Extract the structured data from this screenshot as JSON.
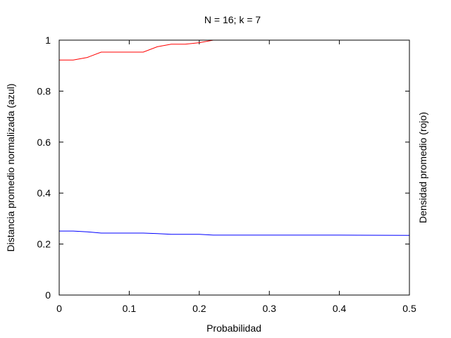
{
  "chart_data": {
    "type": "line",
    "title": "N = 16; k = 7",
    "xlabel": "Probabilidad",
    "ylabel": "Distancia promedio normalizada (azul)",
    "y2label": "Densidad promedio (rojo)",
    "xlim": [
      0,
      0.5
    ],
    "ylim": [
      0,
      1
    ],
    "xticks": [
      "0",
      "0.1",
      "0.2",
      "0.3",
      "0.4",
      "0.5"
    ],
    "yticks": [
      "0",
      "0.2",
      "0.4",
      "0.6",
      "0.8",
      "1"
    ],
    "grid": false,
    "series": [
      {
        "color": "#ff0000",
        "x": [
          0,
          0.02,
          0.04,
          0.06,
          0.08,
          0.1,
          0.12,
          0.14,
          0.16,
          0.18,
          0.2,
          0.22,
          0.24
        ],
        "y": [
          0.922,
          0.922,
          0.932,
          0.953,
          0.953,
          0.953,
          0.953,
          0.974,
          0.984,
          0.984,
          0.99,
          1.0,
          1.0
        ]
      },
      {
        "color": "#0000ff",
        "x": [
          0,
          0.02,
          0.04,
          0.06,
          0.08,
          0.1,
          0.12,
          0.14,
          0.16,
          0.18,
          0.2,
          0.22,
          0.24,
          0.3,
          0.4,
          0.5
        ],
        "y": [
          0.251,
          0.251,
          0.248,
          0.243,
          0.243,
          0.243,
          0.243,
          0.241,
          0.238,
          0.238,
          0.238,
          0.235,
          0.235,
          0.235,
          0.235,
          0.234
        ]
      }
    ]
  }
}
